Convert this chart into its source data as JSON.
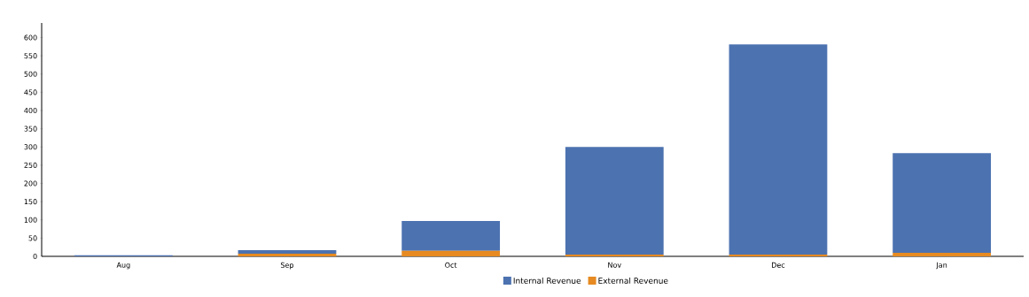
{
  "chart_data": {
    "type": "bar",
    "stacked": true,
    "categories": [
      "Aug",
      "Sep",
      "Oct",
      "Nov",
      "Dec",
      "Jan"
    ],
    "series": [
      {
        "name": "External Revenue",
        "color": "#e68a21",
        "values": [
          0,
          7,
          15,
          5,
          5,
          10
        ]
      },
      {
        "name": "Internal Revenue",
        "color": "#4c72b0",
        "values": [
          3,
          10,
          82,
          295,
          576,
          273
        ]
      }
    ],
    "ylim": [
      0,
      640
    ],
    "yticks": [
      0,
      50,
      100,
      150,
      200,
      250,
      300,
      350,
      400,
      450,
      500,
      550,
      600
    ],
    "grid": false,
    "legend": "bottom"
  }
}
